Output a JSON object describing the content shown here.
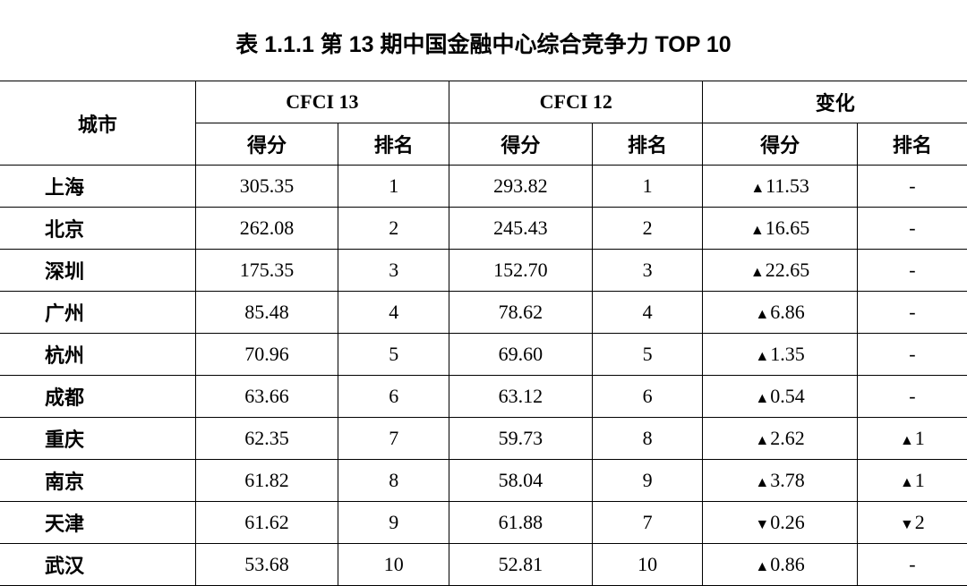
{
  "title": "表 1.1.1 第 13 期中国金融中心综合竞争力 TOP 10",
  "headers": {
    "city": "城市",
    "cfci13": "CFCI 13",
    "cfci12": "CFCI 12",
    "change": "变化",
    "score": "得分",
    "rank": "排名"
  },
  "rows": [
    {
      "city": "上海",
      "score13": "305.35",
      "rank13": "1",
      "score12": "293.82",
      "rank12": "1",
      "scoreChange": "11.53",
      "scoreDir": "up",
      "rankChange": "-",
      "rankDir": "none"
    },
    {
      "city": "北京",
      "score13": "262.08",
      "rank13": "2",
      "score12": "245.43",
      "rank12": "2",
      "scoreChange": "16.65",
      "scoreDir": "up",
      "rankChange": "-",
      "rankDir": "none"
    },
    {
      "city": "深圳",
      "score13": "175.35",
      "rank13": "3",
      "score12": "152.70",
      "rank12": "3",
      "scoreChange": "22.65",
      "scoreDir": "up",
      "rankChange": "-",
      "rankDir": "none"
    },
    {
      "city": "广州",
      "score13": "85.48",
      "rank13": "4",
      "score12": "78.62",
      "rank12": "4",
      "scoreChange": "6.86",
      "scoreDir": "up",
      "rankChange": "-",
      "rankDir": "none"
    },
    {
      "city": "杭州",
      "score13": "70.96",
      "rank13": "5",
      "score12": "69.60",
      "rank12": "5",
      "scoreChange": "1.35",
      "scoreDir": "up",
      "rankChange": "-",
      "rankDir": "none"
    },
    {
      "city": "成都",
      "score13": "63.66",
      "rank13": "6",
      "score12": "63.12",
      "rank12": "6",
      "scoreChange": "0.54",
      "scoreDir": "up",
      "rankChange": "-",
      "rankDir": "none"
    },
    {
      "city": "重庆",
      "score13": "62.35",
      "rank13": "7",
      "score12": "59.73",
      "rank12": "8",
      "scoreChange": "2.62",
      "scoreDir": "up",
      "rankChange": "1",
      "rankDir": "up"
    },
    {
      "city": "南京",
      "score13": "61.82",
      "rank13": "8",
      "score12": "58.04",
      "rank12": "9",
      "scoreChange": "3.78",
      "scoreDir": "up",
      "rankChange": "1",
      "rankDir": "up"
    },
    {
      "city": "天津",
      "score13": "61.62",
      "rank13": "9",
      "score12": "61.88",
      "rank12": "7",
      "scoreChange": "0.26",
      "scoreDir": "down",
      "rankChange": "2",
      "rankDir": "down"
    },
    {
      "city": "武汉",
      "score13": "53.68",
      "rank13": "10",
      "score12": "52.81",
      "rank12": "10",
      "scoreChange": "0.86",
      "scoreDir": "up",
      "rankChange": "-",
      "rankDir": "none"
    }
  ],
  "styling": {
    "type": "table",
    "background_color": "#ffffff",
    "border_color": "#000000",
    "text_color": "#000000",
    "title_fontsize": 25,
    "cell_fontsize": 22,
    "columns": 7,
    "up_symbol": "▲",
    "down_symbol": "▼"
  }
}
